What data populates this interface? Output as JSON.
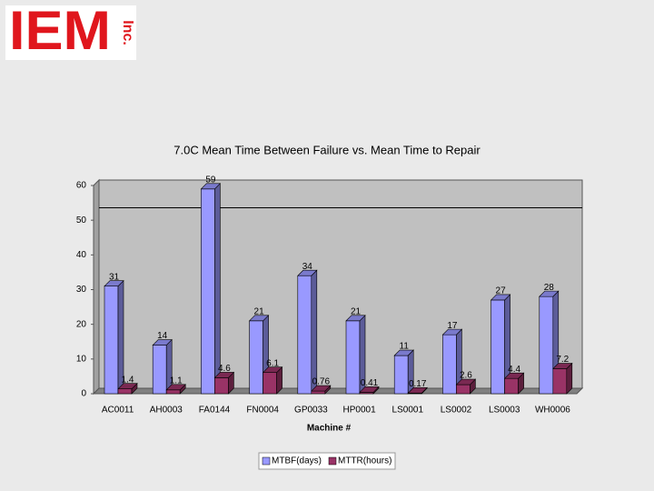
{
  "logo": {
    "text": "IEM",
    "suffix": "Inc."
  },
  "chart_data": {
    "type": "bar3d",
    "title": "7.0C Mean Time Between Failure vs. Mean Time to Repair",
    "x_label": "Machine #",
    "categories": [
      "AC0011",
      "AH0003",
      "FA0144",
      "FN0004",
      "GP0033",
      "HP0001",
      "LS0001",
      "LS0002",
      "LS0003",
      "WH0006"
    ],
    "series": [
      {
        "name": "MTBF(days)",
        "color": "#9999ff",
        "values": [
          31,
          14,
          59,
          21,
          34,
          21,
          11,
          17,
          27,
          28
        ]
      },
      {
        "name": "MTTR(hours)",
        "color": "#993366",
        "values": [
          1.4,
          1.1,
          4.6,
          6.1,
          0.76,
          0.41,
          0.17,
          2.6,
          4.4,
          7.2
        ]
      }
    ],
    "ylim": [
      0,
      60
    ],
    "yticks": [
      0,
      10,
      20,
      30,
      40,
      50,
      60
    ],
    "reference_line": 52,
    "legend": "bottom"
  }
}
